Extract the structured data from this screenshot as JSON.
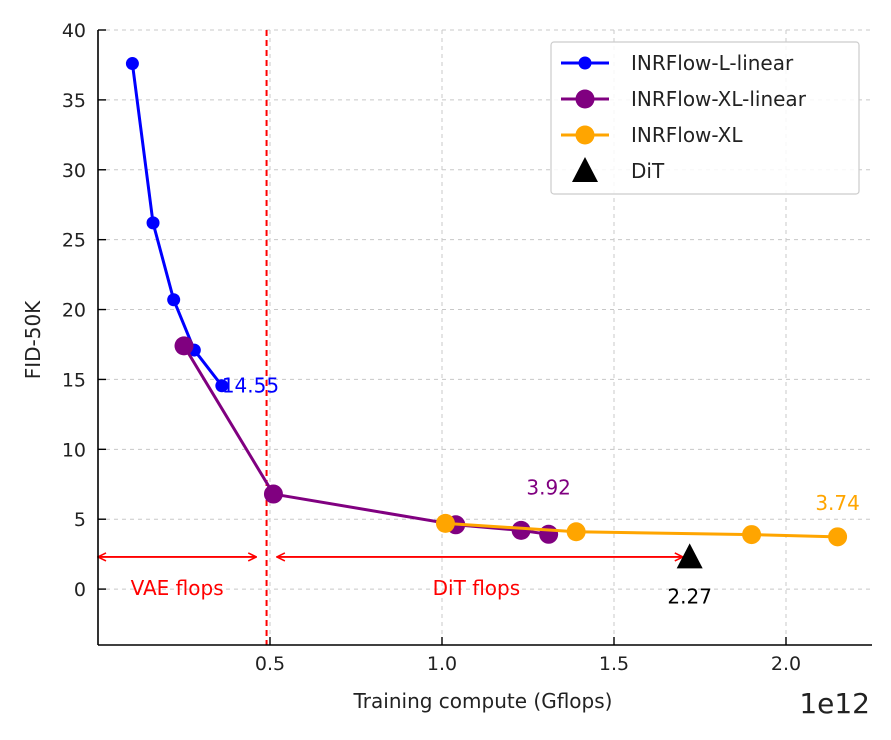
{
  "chart_data": {
    "type": "line",
    "xlabel": "Training compute (Gflops)",
    "ylabel": "FID-50K",
    "x_multiplier_label": "1e12",
    "xlim": [
      0.0,
      2.25
    ],
    "ylim": [
      -4,
      40
    ],
    "xticks": [
      0.5,
      1.0,
      1.5,
      2.0
    ],
    "xtick_labels": [
      "0.5",
      "1.0",
      "1.5",
      "2.0"
    ],
    "yticks": [
      0,
      5,
      10,
      15,
      20,
      25,
      30,
      35,
      40
    ],
    "ytick_labels": [
      "0",
      "5",
      "10",
      "15",
      "20",
      "25",
      "30",
      "35",
      "40"
    ],
    "grid": true,
    "legend_position": "top-right",
    "series": [
      {
        "name": "INRFlow-L-linear",
        "color": "#0000ff",
        "marker": "circle-small",
        "x": [
          0.1,
          0.16,
          0.22,
          0.28,
          0.36
        ],
        "y": [
          37.6,
          26.2,
          20.7,
          17.1,
          14.55
        ],
        "end_label": "14.55"
      },
      {
        "name": "INRFlow-XL-linear",
        "color": "#800080",
        "marker": "circle",
        "x": [
          0.25,
          0.51,
          1.04,
          1.23,
          1.31
        ],
        "y": [
          17.4,
          6.8,
          4.6,
          4.2,
          3.92
        ],
        "end_label": "3.92"
      },
      {
        "name": "INRFlow-XL",
        "color": "#ffa500",
        "marker": "circle",
        "x": [
          1.01,
          1.39,
          1.9,
          2.15
        ],
        "y": [
          4.7,
          4.1,
          3.9,
          3.74
        ],
        "end_label": "3.74"
      },
      {
        "name": "DiT",
        "color": "#000000",
        "marker": "triangle",
        "x": [
          1.72
        ],
        "y": [
          2.27
        ],
        "end_label": "2.27"
      }
    ],
    "annotations": {
      "vline_x": 0.49,
      "vline_color": "#ff0000",
      "arrow_y": 2.3,
      "vae_arrow": [
        0.0,
        0.46
      ],
      "dit_arrow": [
        0.52,
        1.7
      ],
      "vae_label": "VAE flops",
      "dit_label": "DiT flops",
      "vae_label_x": 0.23,
      "dit_label_x": 1.1,
      "label_y": 0.0,
      "color": "#ff0000"
    }
  }
}
